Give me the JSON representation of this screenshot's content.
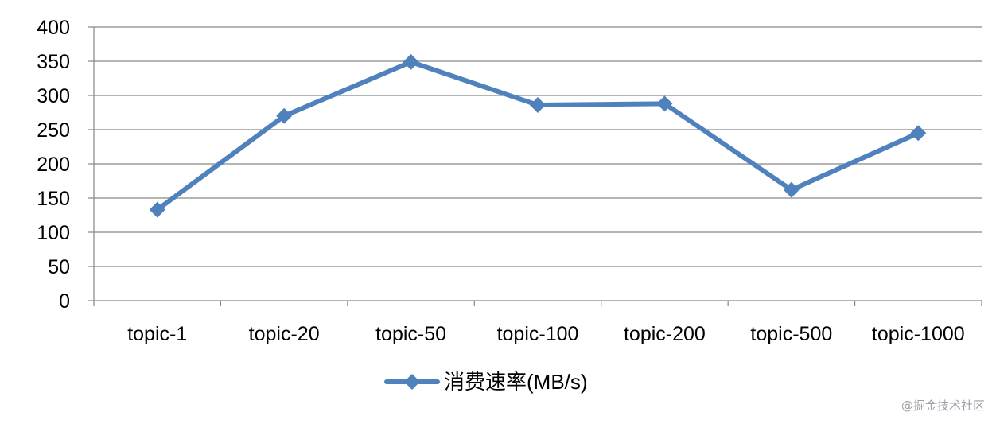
{
  "chart_data": {
    "type": "line",
    "categories": [
      "topic-1",
      "topic-20",
      "topic-50",
      "topic-100",
      "topic-200",
      "topic-500",
      "topic-1000"
    ],
    "series": [
      {
        "name": "消费速率(MB/s)",
        "values": [
          133,
          270,
          349,
          286,
          288,
          162,
          245
        ],
        "color": "#4f81bd",
        "marker": "diamond"
      }
    ],
    "yticks": [
      0,
      50,
      100,
      150,
      200,
      250,
      300,
      350,
      400
    ],
    "ylim": [
      0,
      400
    ],
    "grid": true,
    "legend": "bottom-center"
  },
  "watermark": "@掘金技术社区"
}
